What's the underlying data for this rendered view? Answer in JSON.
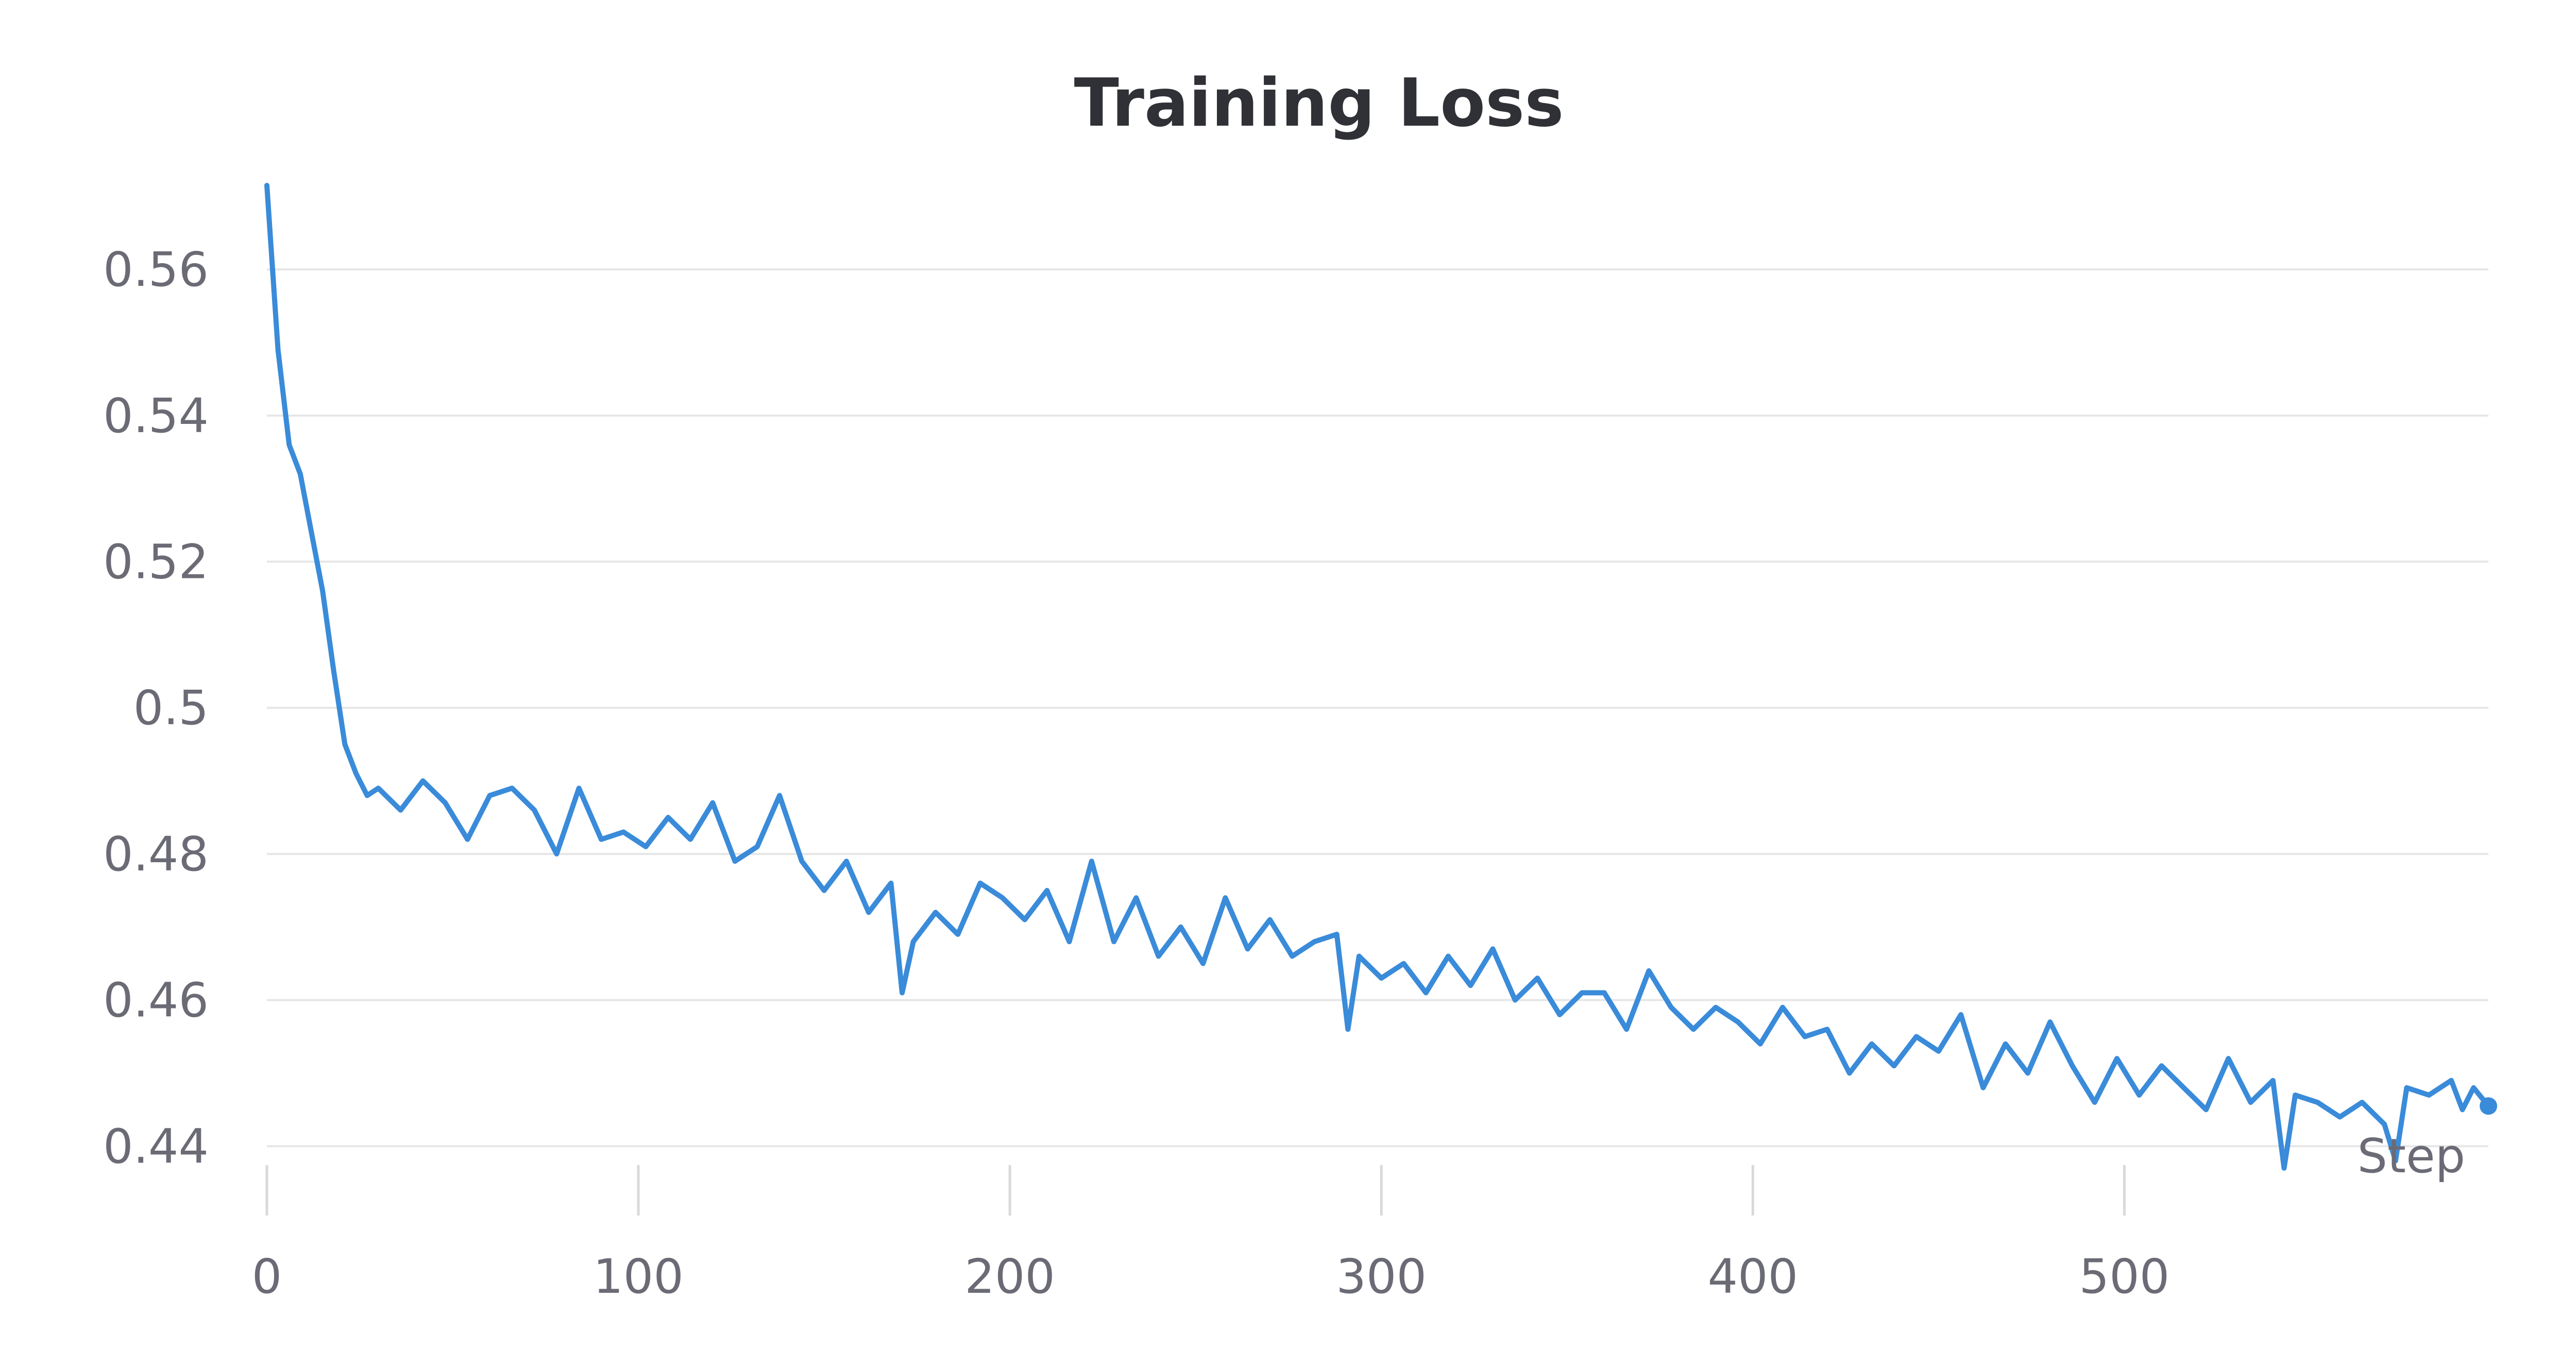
{
  "chart_data": {
    "type": "line",
    "title": "Training Loss",
    "xlabel": "Step",
    "ylabel": "",
    "xlim": [
      0,
      598
    ],
    "ylim": [
      0.4365,
      0.5715
    ],
    "x_ticks": [
      0,
      100,
      200,
      300,
      400,
      500
    ],
    "x_tick_labels": [
      "0",
      "100",
      "200",
      "300",
      "400",
      "500"
    ],
    "y_ticks": [
      0.44,
      0.46,
      0.48,
      0.5,
      0.52,
      0.54,
      0.56
    ],
    "y_tick_labels": [
      "0.44",
      "0.46",
      "0.48",
      "0.5",
      "0.52",
      "0.54",
      "0.56"
    ],
    "grid": true,
    "series": [
      {
        "color": "#3a8bd9",
        "x": [
          0,
          3,
          6,
          9,
          12,
          15,
          18,
          21,
          24,
          27,
          30,
          36,
          42,
          48,
          54,
          60,
          66,
          72,
          78,
          84,
          90,
          96,
          102,
          108,
          114,
          120,
          126,
          132,
          138,
          144,
          150,
          156,
          162,
          168,
          171,
          174,
          180,
          186,
          192,
          198,
          204,
          210,
          216,
          222,
          228,
          234,
          240,
          246,
          252,
          258,
          264,
          270,
          276,
          282,
          288,
          291,
          294,
          300,
          306,
          312,
          318,
          324,
          330,
          336,
          342,
          348,
          354,
          360,
          366,
          372,
          378,
          384,
          390,
          396,
          402,
          408,
          414,
          420,
          426,
          432,
          438,
          444,
          450,
          456,
          462,
          468,
          474,
          480,
          486,
          492,
          498,
          504,
          510,
          516,
          522,
          528,
          534,
          540,
          543,
          546,
          552,
          558,
          564,
          570,
          573,
          576,
          582,
          588,
          591,
          594,
          598
        ],
        "y": [
          0.5715,
          0.549,
          0.536,
          0.532,
          0.524,
          0.516,
          0.505,
          0.495,
          0.491,
          0.488,
          0.489,
          0.486,
          0.49,
          0.487,
          0.482,
          0.488,
          0.489,
          0.486,
          0.48,
          0.489,
          0.482,
          0.483,
          0.481,
          0.485,
          0.482,
          0.487,
          0.479,
          0.481,
          0.488,
          0.479,
          0.475,
          0.479,
          0.472,
          0.476,
          0.461,
          0.468,
          0.472,
          0.469,
          0.476,
          0.474,
          0.471,
          0.475,
          0.468,
          0.479,
          0.468,
          0.474,
          0.466,
          0.47,
          0.465,
          0.474,
          0.467,
          0.471,
          0.466,
          0.468,
          0.469,
          0.456,
          0.466,
          0.463,
          0.465,
          0.461,
          0.466,
          0.462,
          0.467,
          0.46,
          0.463,
          0.458,
          0.461,
          0.461,
          0.456,
          0.464,
          0.459,
          0.456,
          0.459,
          0.457,
          0.454,
          0.459,
          0.455,
          0.456,
          0.45,
          0.454,
          0.451,
          0.455,
          0.453,
          0.458,
          0.448,
          0.454,
          0.45,
          0.457,
          0.451,
          0.446,
          0.452,
          0.447,
          0.451,
          0.448,
          0.445,
          0.452,
          0.446,
          0.449,
          0.437,
          0.447,
          0.446,
          0.444,
          0.446,
          0.443,
          0.438,
          0.448,
          0.447,
          0.449,
          0.445,
          0.448,
          0.4455
        ]
      }
    ]
  }
}
